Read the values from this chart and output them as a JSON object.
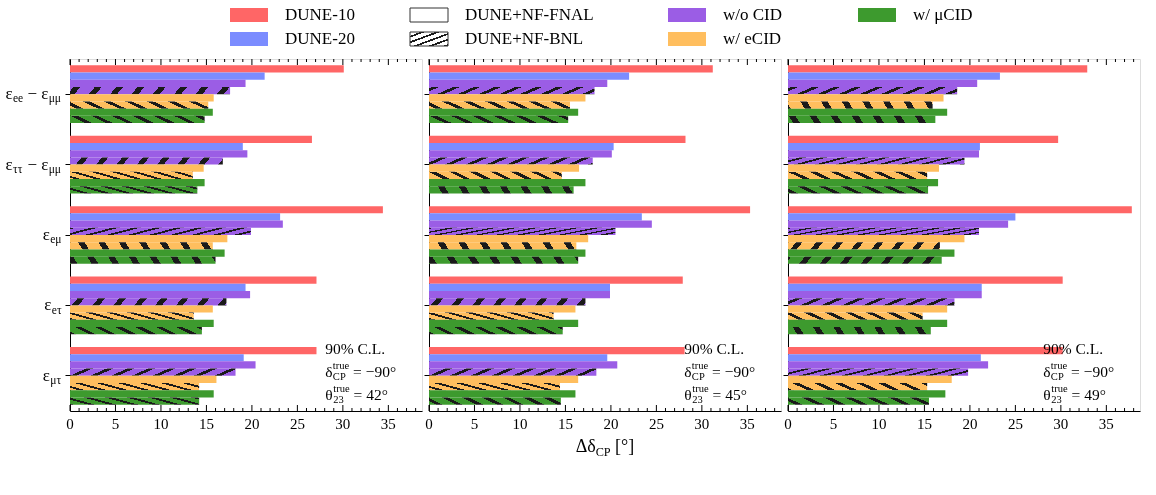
{
  "chart_data": [
    {
      "type": "bar",
      "orientation": "horizontal",
      "legend": "top",
      "tick_labels": true,
      "categories": [
        "ε$_{ee}$ − ε$_{μμ}$",
        "ε$_{ττ}$ − ε$_{μμ}$",
        "ε$_{eμ}$",
        "ε$_{eτ}$",
        "ε$_{μτ}$"
      ],
      "series": [
        {
          "name": "DUNE-10",
          "color": "#ff6666",
          "values": [
            30.1,
            26.6,
            34.4,
            27.1,
            27.1
          ]
        },
        {
          "name": "DUNE-20",
          "color": "#7b8cff",
          "values": [
            21.4,
            19.0,
            23.1,
            19.3,
            19.1
          ]
        },
        {
          "name": "w/o CID",
          "color": "#9b5de5",
          "values": [
            19.3,
            19.5,
            23.4,
            19.8,
            20.4
          ]
        },
        {
          "color": "#9b5de5",
          "values": [
            17.6,
            16.8,
            19.9,
            17.2,
            18.2
          ]
        },
        {
          "name": "w/ eCID",
          "color": "#ffbe5e",
          "values": [
            15.8,
            14.7,
            17.3,
            15.7,
            16.1
          ]
        },
        {
          "color": "#ffbe5e",
          "values": [
            15.2,
            13.5,
            15.7,
            13.6,
            14.2
          ]
        },
        {
          "name": "w/ μCID",
          "color": "#3d9a2e",
          "values": [
            15.7,
            14.8,
            17.0,
            15.8,
            15.8
          ]
        },
        {
          "color": "#3d9a2e",
          "values": [
            14.8,
            14.0,
            16.0,
            14.5,
            14.2
          ]
        }
      ],
      "xlim": [
        0,
        38.7
      ],
      "xticks": [
        0,
        {
          "value": 1,
          "label": null
        },
        {
          "value": 2,
          "label": null
        },
        {
          "value": 3,
          "label": null
        },
        {
          "value": 4,
          "label": null
        },
        5,
        {
          "value": 6,
          "label": null
        },
        {
          "value": 7,
          "label": null
        },
        {
          "value": 8,
          "label": null
        },
        {
          "value": 9,
          "label": null
        },
        10,
        {
          "value": 11,
          "label": null
        },
        {
          "value": 12,
          "label": null
        },
        {
          "value": 13,
          "label": null
        },
        {
          "value": 14,
          "label": null
        },
        15,
        {
          "value": 16,
          "label": null
        },
        {
          "value": 17,
          "label": null
        },
        {
          "value": 18,
          "label": null
        },
        {
          "value": 19,
          "label": null
        },
        20,
        {
          "value": 21,
          "label": null
        },
        {
          "value": 22,
          "label": null
        },
        {
          "value": 23,
          "label": null
        },
        {
          "value": 24,
          "label": null
        },
        25,
        {
          "value": 26,
          "label": null
        },
        {
          "value": 27,
          "label": null
        },
        {
          "value": 28,
          "label": null
        },
        {
          "value": 29,
          "label": null
        },
        30,
        {
          "value": 31,
          "label": null
        },
        {
          "value": 32,
          "label": null
        },
        {
          "value": 33,
          "label": null
        },
        {
          "value": 34,
          "label": null
        },
        35,
        {
          "value": 36,
          "label": null
        },
        {
          "value": 37,
          "label": null
        },
        {
          "value": 38,
          "label": null
        }
      ],
      "annotations": [
        "DUNE+NF-FNAL",
        "DUNE+NF-BNL",
        "90% C.L.",
        "δ$^{true}$$_{CP}$ = −90°",
        "θ$^{true}$$_{23}$ = 42°"
      ]
    },
    {
      "type": "bar",
      "orientation": "horizontal",
      "tick_labels": "x",
      "xlabel": "Δδ$_{CP}$ [°]",
      "categories": [
        "ε$_{ee}$ − ε$_{μμ}$",
        "ε$_{ττ}$ − ε$_{μμ}$",
        "ε$_{eμ}$",
        "ε$_{eτ}$",
        "ε$_{μτ}$"
      ],
      "series": [
        {
          "name": "DUNE-10",
          "color": "#ff6666",
          "values": [
            31.2,
            28.2,
            35.3,
            27.9,
            28.1
          ]
        },
        {
          "name": "DUNE-20",
          "color": "#7b8cff",
          "values": [
            22.0,
            20.3,
            23.4,
            19.9,
            19.6
          ]
        },
        {
          "name": "w/o CID",
          "color": "#9b5de5",
          "values": [
            19.6,
            20.1,
            24.5,
            19.9,
            20.7
          ]
        },
        {
          "color": "#9b5de5",
          "values": [
            18.2,
            18.0,
            20.5,
            17.2,
            18.4
          ]
        },
        {
          "name": "w/ eCID",
          "color": "#ffbe5e",
          "values": [
            17.2,
            16.5,
            17.5,
            16.1,
            16.4
          ]
        },
        {
          "color": "#ffbe5e",
          "values": [
            15.5,
            14.6,
            16.2,
            13.7,
            14.4
          ]
        },
        {
          "name": "w/ μCID",
          "color": "#3d9a2e",
          "values": [
            16.4,
            17.2,
            17.2,
            16.4,
            16.1
          ]
        },
        {
          "color": "#3d9a2e",
          "values": [
            15.3,
            15.9,
            16.4,
            14.7,
            14.5
          ]
        }
      ],
      "xlim": [
        0,
        38.7
      ],
      "xticks": [
        0,
        {
          "value": 1,
          "label": null
        },
        {
          "value": 2,
          "label": null
        },
        {
          "value": 3,
          "label": null
        },
        {
          "value": 4,
          "label": null
        },
        5,
        {
          "value": 6,
          "label": null
        },
        {
          "value": 7,
          "label": null
        },
        {
          "value": 8,
          "label": null
        },
        {
          "value": 9,
          "label": null
        },
        10,
        {
          "value": 11,
          "label": null
        },
        {
          "value": 12,
          "label": null
        },
        {
          "value": 13,
          "label": null
        },
        {
          "value": 14,
          "label": null
        },
        15,
        {
          "value": 16,
          "label": null
        },
        {
          "value": 17,
          "label": null
        },
        {
          "value": 18,
          "label": null
        },
        {
          "value": 19,
          "label": null
        },
        20,
        {
          "value": 21,
          "label": null
        },
        {
          "value": 22,
          "label": null
        },
        {
          "value": 23,
          "label": null
        },
        {
          "value": 24,
          "label": null
        },
        25,
        {
          "value": 26,
          "label": null
        },
        {
          "value": 27,
          "label": null
        },
        {
          "value": 28,
          "label": null
        },
        {
          "value": 29,
          "label": null
        },
        30,
        {
          "value": 31,
          "label": null
        },
        {
          "value": 32,
          "label": null
        },
        {
          "value": 33,
          "label": null
        },
        {
          "value": 34,
          "label": null
        },
        35,
        {
          "value": 36,
          "label": null
        },
        {
          "value": 37,
          "label": null
        },
        {
          "value": 38,
          "label": null
        }
      ],
      "annotations": [
        "90% C.L.",
        "δ$^{true}$$_{CP}$ = −90°",
        "θ$^{true}$$_{23}$ = 45°"
      ]
    },
    {
      "type": "bar",
      "orientation": "horizontal",
      "tick_labels": "x",
      "categories": [
        "ε$_{ee}$ − ε$_{μμ}$",
        "ε$_{ττ}$ − ε$_{μμ}$",
        "ε$_{eμ}$",
        "ε$_{eτ}$",
        "ε$_{μτ}$"
      ],
      "series": [
        {
          "name": "DUNE-10",
          "color": "#ff6666",
          "values": [
            32.9,
            29.7,
            37.8,
            30.2,
            30.2
          ]
        },
        {
          "name": "DUNE-20",
          "color": "#7b8cff",
          "values": [
            23.3,
            21.1,
            25.0,
            21.3,
            21.2
          ]
        },
        {
          "name": "w/o CID",
          "color": "#9b5de5",
          "values": [
            20.8,
            21.0,
            24.2,
            21.3,
            22.0
          ]
        },
        {
          "color": "#9b5de5",
          "values": [
            18.6,
            19.4,
            21.0,
            18.3,
            19.8
          ]
        },
        {
          "name": "w/ eCID",
          "color": "#ffbe5e",
          "values": [
            17.1,
            16.6,
            19.4,
            17.5,
            18.0
          ]
        },
        {
          "color": "#ffbe5e",
          "values": [
            15.9,
            15.3,
            16.7,
            14.8,
            15.3
          ]
        },
        {
          "name": "w/ μCID",
          "color": "#3d9a2e",
          "values": [
            17.5,
            16.5,
            18.3,
            17.5,
            17.3
          ]
        },
        {
          "color": "#3d9a2e",
          "values": [
            16.2,
            15.4,
            16.9,
            15.7,
            15.5
          ]
        }
      ],
      "xlim": [
        0,
        38.7
      ],
      "xticks": [
        0,
        {
          "value": 1,
          "label": null
        },
        {
          "value": 2,
          "label": null
        },
        {
          "value": 3,
          "label": null
        },
        {
          "value": 4,
          "label": null
        },
        5,
        {
          "value": 6,
          "label": null
        },
        {
          "value": 7,
          "label": null
        },
        {
          "value": 8,
          "label": null
        },
        {
          "value": 9,
          "label": null
        },
        10,
        {
          "value": 11,
          "label": null
        },
        {
          "value": 12,
          "label": null
        },
        {
          "value": 13,
          "label": null
        },
        {
          "value": 14,
          "label": null
        },
        15,
        {
          "value": 16,
          "label": null
        },
        {
          "value": 17,
          "label": null
        },
        {
          "value": 18,
          "label": null
        },
        {
          "value": 19,
          "label": null
        },
        20,
        {
          "value": 21,
          "label": null
        },
        {
          "value": 22,
          "label": null
        },
        {
          "value": 23,
          "label": null
        },
        {
          "value": 24,
          "label": null
        },
        25,
        {
          "value": 26,
          "label": null
        },
        {
          "value": 27,
          "label": null
        },
        {
          "value": 28,
          "label": null
        },
        {
          "value": 29,
          "label": null
        },
        30,
        {
          "value": 31,
          "label": null
        },
        {
          "value": 32,
          "label": null
        },
        {
          "value": 33,
          "label": null
        },
        {
          "value": 34,
          "label": null
        },
        35,
        {
          "value": 36,
          "label": null
        },
        {
          "value": 37,
          "label": null
        },
        {
          "value": 38,
          "label": null
        }
      ],
      "annotations": [
        "90% C.L.",
        "δ$^{true}$$_{CP}$ = −90°",
        "θ$^{true}$$_{23}$ = 49°"
      ]
    }
  ]
}
